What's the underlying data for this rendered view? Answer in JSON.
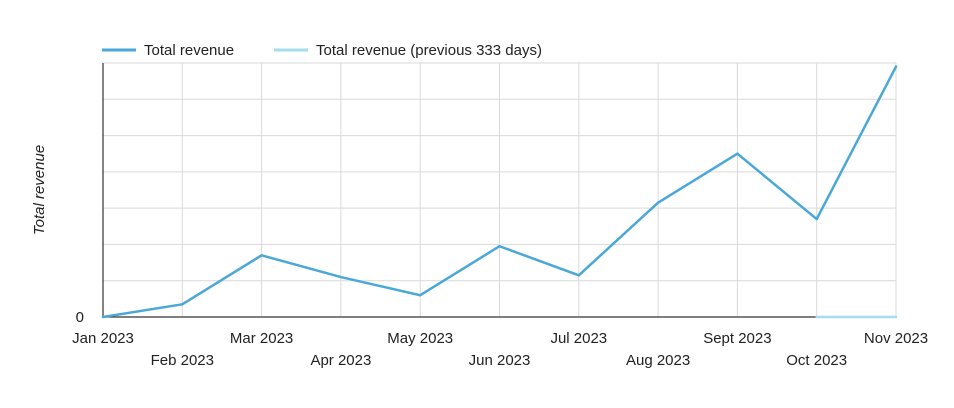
{
  "chart_data": {
    "type": "line",
    "title": "",
    "xlabel": "",
    "ylabel": "Total revenue",
    "legend_position": "top-left",
    "grid": true,
    "categories": [
      "Jan 2023",
      "Feb 2023",
      "Mar 2023",
      "Apr 2023",
      "May 2023",
      "Jun 2023",
      "Jul 2023",
      "Aug 2023",
      "Sept 2023",
      "Oct 2023",
      "Nov 2023"
    ],
    "y_tick_labels": [
      "0"
    ],
    "ylim": [
      0,
      7
    ],
    "series": [
      {
        "name": "Total revenue",
        "color": "#4aa8d8",
        "values": [
          0,
          0.35,
          1.7,
          1.1,
          0.6,
          1.95,
          1.15,
          3.15,
          4.5,
          2.7,
          6.9
        ]
      },
      {
        "name": "Total revenue (previous 333 days)",
        "color": "#a6dceb",
        "values": [
          null,
          null,
          null,
          null,
          null,
          null,
          null,
          null,
          null,
          0,
          0
        ]
      }
    ]
  }
}
